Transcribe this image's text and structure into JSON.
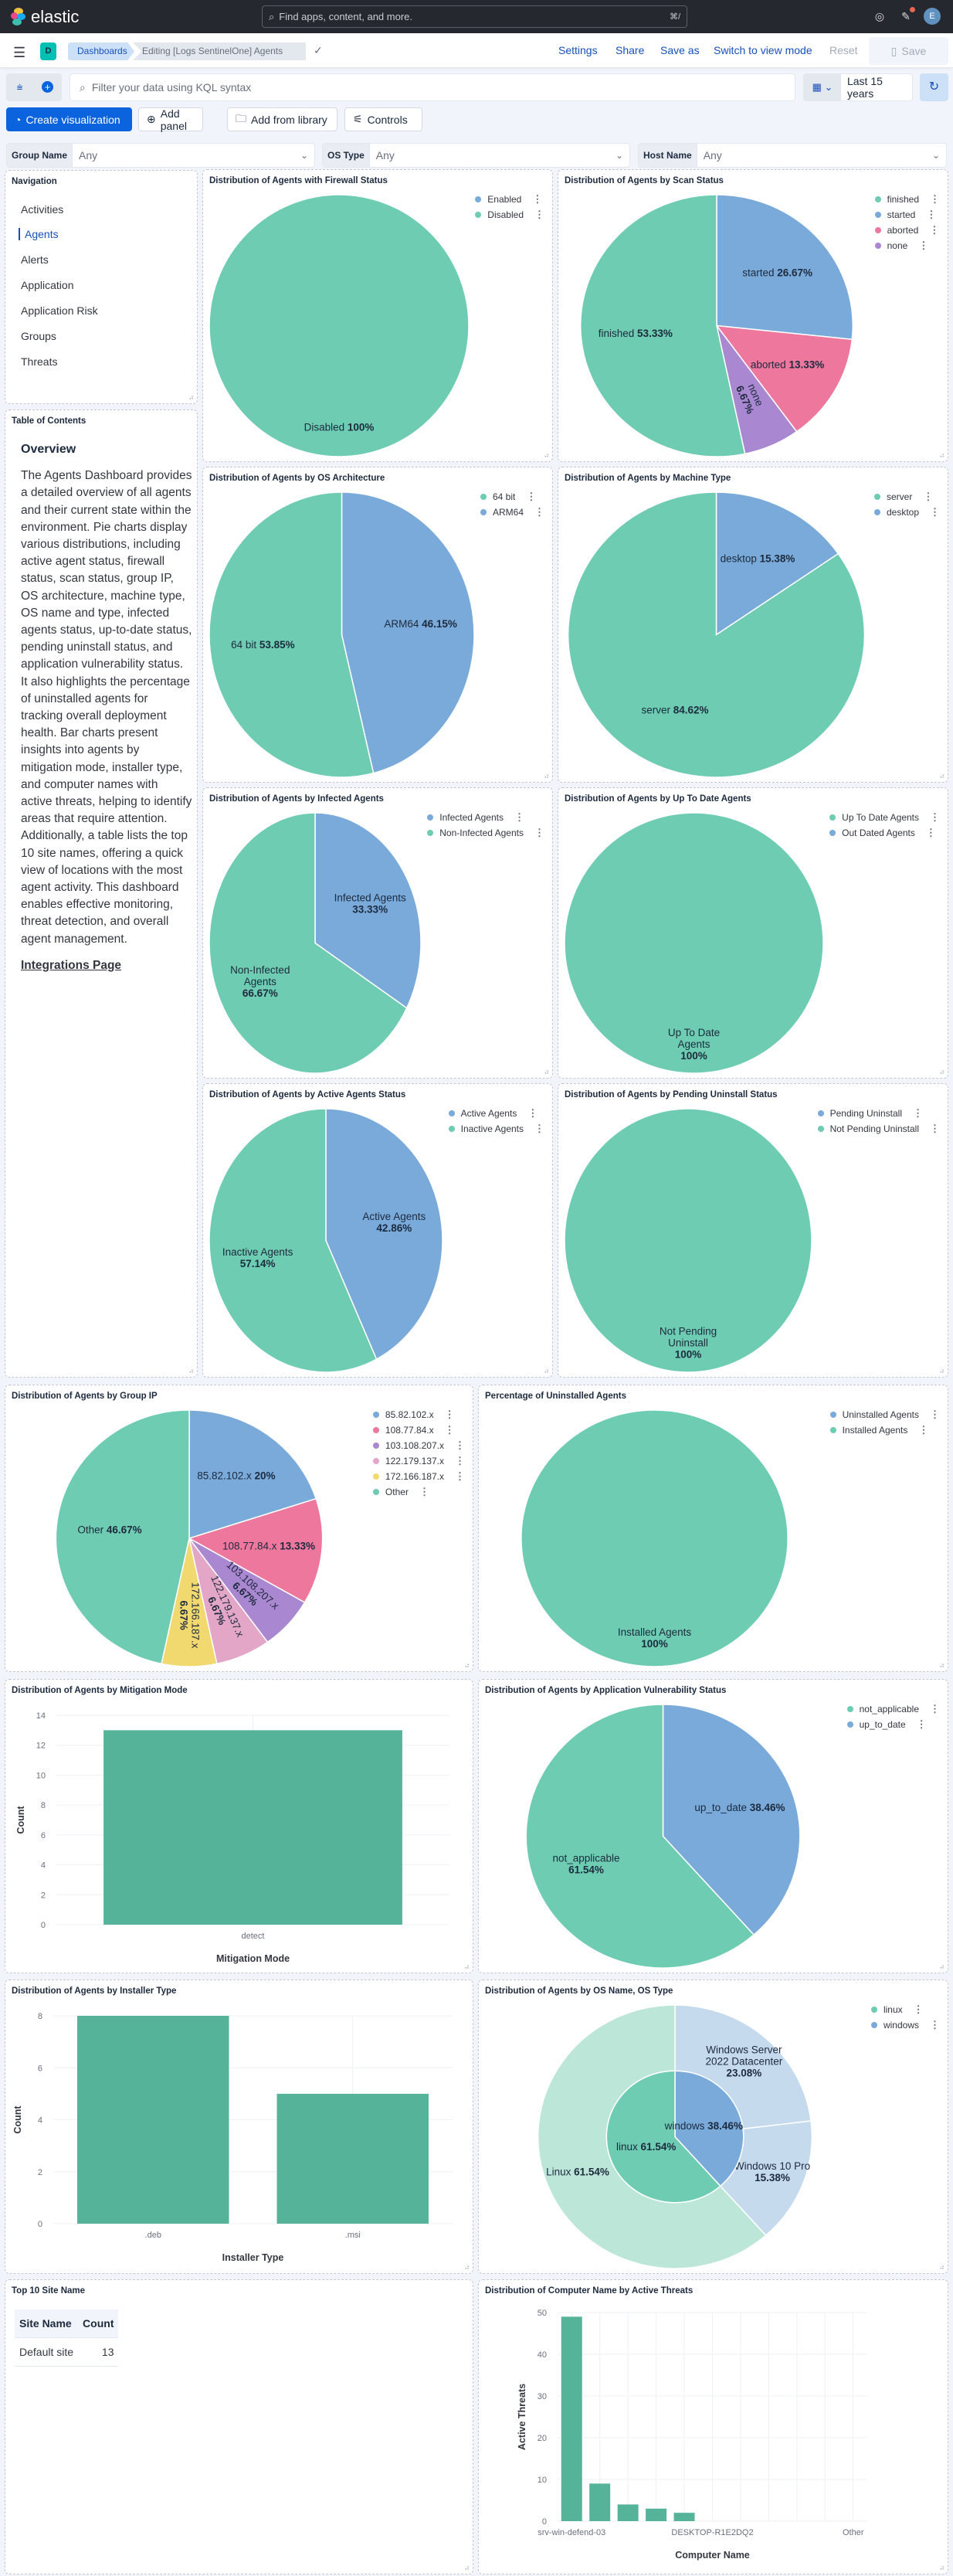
{
  "header": {
    "brand": "elastic",
    "search_placeholder": "Find apps, content, and more.",
    "search_shortcut": "⌘/",
    "avatar_initial": "E"
  },
  "appbar": {
    "space_initial": "D",
    "breadcrumbs": [
      "Dashboards",
      "Editing [Logs SentinelOne] Agents"
    ],
    "actions": {
      "settings": "Settings",
      "share": "Share",
      "save_as": "Save as",
      "switch_view": "Switch to view mode",
      "reset": "Reset",
      "save": "Save"
    }
  },
  "query": {
    "placeholder": "Filter your data using KQL syntax",
    "time_range": "Last 15 years"
  },
  "toolbar": {
    "create_visualization": "Create visualization",
    "add_panel": "Add panel",
    "add_from_library": "Add from library",
    "controls": "Controls"
  },
  "controls": [
    {
      "label": "Group Name",
      "value": "Any"
    },
    {
      "label": "OS Type",
      "value": "Any"
    },
    {
      "label": "Host Name",
      "value": "Any"
    }
  ],
  "navigation": {
    "title": "Navigation",
    "items": [
      "Activities",
      "Agents",
      "Alerts",
      "Application",
      "Application Risk",
      "Groups",
      "Threats"
    ],
    "active": "Agents"
  },
  "toc": {
    "title": "Table of Contents",
    "heading": "Overview",
    "body": "The Agents Dashboard provides a detailed overview of all agents and their current state within the environment. Pie charts display various distributions, including active agent status, firewall status, scan status, group IP, OS architecture, machine type, OS name and type, infected agents status, up-to-date status, pending uninstall status, and application vulnerability status. It also highlights the percentage of uninstalled agents for tracking overall deployment health. Bar charts present insights into agents by mitigation mode, installer type, and computer names with active threats, helping to identify areas that require attention. Additionally, a table lists the top 10 site names, offering a quick view of locations with the most agent activity. This dashboard enables effective monitoring, threat detection, and overall agent management.",
    "link": "Integrations Page"
  },
  "colors": {
    "green": "#6DCCB1",
    "blue": "#79AAD9",
    "pink": "#EE789D",
    "purple": "#A987D1",
    "light_pink": "#E4A6C7",
    "yellow": "#F1D86F",
    "bar": "#54B399",
    "accent": "#0B64DD"
  },
  "site_table": {
    "title": "Top 10 Site Name",
    "columns": [
      "Site Name",
      "Count"
    ],
    "rows": [
      [
        "Default site",
        "13"
      ]
    ]
  },
  "chart_data": [
    {
      "type": "pie",
      "title": "Distribution of Agents with Firewall Status",
      "legend": [
        {
          "label": "Enabled",
          "color": "#79AAD9"
        },
        {
          "label": "Disabled",
          "color": "#6DCCB1"
        }
      ],
      "slices": [
        {
          "label": "Disabled",
          "value": 100,
          "pct": "100%",
          "color": "#6DCCB1"
        }
      ]
    },
    {
      "type": "pie",
      "title": "Distribution of Agents by Scan Status",
      "legend": [
        {
          "label": "finished",
          "color": "#6DCCB1"
        },
        {
          "label": "started",
          "color": "#79AAD9"
        },
        {
          "label": "aborted",
          "color": "#EE789D"
        },
        {
          "label": "none",
          "color": "#A987D1"
        }
      ],
      "slices": [
        {
          "label": "started",
          "value": 26.67,
          "pct": "26.67%",
          "color": "#79AAD9"
        },
        {
          "label": "aborted",
          "value": 13.33,
          "pct": "13.33%",
          "color": "#EE789D"
        },
        {
          "label": "none",
          "value": 6.67,
          "pct": "6.67%",
          "color": "#A987D1"
        },
        {
          "label": "finished",
          "value": 53.33,
          "pct": "53.33%",
          "color": "#6DCCB1"
        }
      ]
    },
    {
      "type": "pie",
      "title": "Distribution of Agents by OS Architecture",
      "legend": [
        {
          "label": "64 bit",
          "color": "#6DCCB1"
        },
        {
          "label": "ARM64",
          "color": "#79AAD9"
        }
      ],
      "slices": [
        {
          "label": "ARM64",
          "value": 46.15,
          "pct": "46.15%",
          "color": "#79AAD9"
        },
        {
          "label": "64 bit",
          "value": 53.85,
          "pct": "53.85%",
          "color": "#6DCCB1"
        }
      ]
    },
    {
      "type": "pie",
      "title": "Distribution of Agents by Machine Type",
      "legend": [
        {
          "label": "server",
          "color": "#6DCCB1"
        },
        {
          "label": "desktop",
          "color": "#79AAD9"
        }
      ],
      "slices": [
        {
          "label": "desktop",
          "value": 15.38,
          "pct": "15.38%",
          "color": "#79AAD9"
        },
        {
          "label": "server",
          "value": 84.62,
          "pct": "84.62%",
          "color": "#6DCCB1"
        }
      ]
    },
    {
      "type": "pie",
      "title": "Distribution of Agents by Infected Agents",
      "legend": [
        {
          "label": "Infected Agents",
          "color": "#79AAD9"
        },
        {
          "label": "Non-Infected Agents",
          "color": "#6DCCB1"
        }
      ],
      "slices": [
        {
          "label": "Infected Agents",
          "value": 33.33,
          "pct": "33.33%",
          "color": "#79AAD9"
        },
        {
          "label": "Non-Infected Agents",
          "value": 66.67,
          "pct": "66.67%",
          "color": "#6DCCB1"
        }
      ]
    },
    {
      "type": "pie",
      "title": "Distribution of Agents by Up To Date Agents",
      "legend": [
        {
          "label": "Up To Date Agents",
          "color": "#6DCCB1"
        },
        {
          "label": "Out Dated Agents",
          "color": "#79AAD9"
        }
      ],
      "slices": [
        {
          "label": "Up To Date Agents",
          "value": 100,
          "pct": "100%",
          "color": "#6DCCB1"
        }
      ]
    },
    {
      "type": "pie",
      "title": "Distribution of Agents by Active Agents Status",
      "legend": [
        {
          "label": "Active Agents",
          "color": "#79AAD9"
        },
        {
          "label": "Inactive Agents",
          "color": "#6DCCB1"
        }
      ],
      "slices": [
        {
          "label": "Active Agents",
          "value": 42.86,
          "pct": "42.86%",
          "color": "#79AAD9"
        },
        {
          "label": "Inactive Agents",
          "value": 57.14,
          "pct": "57.14%",
          "color": "#6DCCB1"
        }
      ]
    },
    {
      "type": "pie",
      "title": "Distribution of Agents by Pending Uninstall Status",
      "legend": [
        {
          "label": "Pending Uninstall",
          "color": "#79AAD9"
        },
        {
          "label": "Not Pending Uninstall",
          "color": "#6DCCB1"
        }
      ],
      "slices": [
        {
          "label": "Not Pending Uninstall",
          "value": 100,
          "pct": "100%",
          "color": "#6DCCB1"
        }
      ]
    },
    {
      "type": "pie",
      "title": "Distribution of Agents by Group IP",
      "legend": [
        {
          "label": "85.82.102.x",
          "color": "#79AAD9"
        },
        {
          "label": "108.77.84.x",
          "color": "#EE789D"
        },
        {
          "label": "103.108.207.x",
          "color": "#A987D1"
        },
        {
          "label": "122.179.137.x",
          "color": "#E4A6C7"
        },
        {
          "label": "172.166.187.x",
          "color": "#F1D86F"
        },
        {
          "label": "Other",
          "color": "#6DCCB1"
        }
      ],
      "slices": [
        {
          "label": "85.82.102.x",
          "value": 20,
          "pct": "20%",
          "color": "#79AAD9"
        },
        {
          "label": "108.77.84.x",
          "value": 13.33,
          "pct": "13.33%",
          "color": "#EE789D"
        },
        {
          "label": "103.108.207.x",
          "value": 6.67,
          "pct": "6.67%",
          "color": "#A987D1"
        },
        {
          "label": "122.179.137.x",
          "value": 6.67,
          "pct": "6.67%",
          "color": "#E4A6C7"
        },
        {
          "label": "172.166.187.x",
          "value": 6.67,
          "pct": "6.67%",
          "color": "#F1D86F"
        },
        {
          "label": "Other",
          "value": 46.67,
          "pct": "46.67%",
          "color": "#6DCCB1"
        }
      ]
    },
    {
      "type": "pie",
      "title": "Percentage of Uninstalled Agents",
      "legend": [
        {
          "label": "Uninstalled Agents",
          "color": "#79AAD9"
        },
        {
          "label": "Installed Agents",
          "color": "#6DCCB1"
        }
      ],
      "slices": [
        {
          "label": "Installed Agents",
          "value": 100,
          "pct": "100%",
          "color": "#6DCCB1"
        }
      ]
    },
    {
      "type": "bar",
      "title": "Distribution of Agents by Mitigation Mode",
      "categories": [
        "detect"
      ],
      "values": [
        13
      ],
      "xlabel": "Mitigation Mode",
      "ylabel": "Count",
      "ylim": [
        0,
        14
      ],
      "yticks": [
        0,
        2,
        4,
        6,
        8,
        10,
        12,
        14
      ],
      "grid": true
    },
    {
      "type": "pie",
      "title": "Distribution of Agents by Application Vulnerability Status",
      "legend": [
        {
          "label": "not_applicable",
          "color": "#6DCCB1"
        },
        {
          "label": "up_to_date",
          "color": "#79AAD9"
        }
      ],
      "slices": [
        {
          "label": "up_to_date",
          "value": 38.46,
          "pct": "38.46%",
          "color": "#79AAD9"
        },
        {
          "label": "not_applicable",
          "value": 61.54,
          "pct": "61.54%",
          "color": "#6DCCB1"
        }
      ]
    },
    {
      "type": "bar",
      "title": "Distribution of Agents by Installer Type",
      "categories": [
        ".deb",
        ".msi"
      ],
      "values": [
        8,
        5
      ],
      "xlabel": "Installer Type",
      "ylabel": "Count",
      "ylim": [
        0,
        8
      ],
      "yticks": [
        0,
        2,
        4,
        6,
        8
      ],
      "grid": true
    },
    {
      "type": "donut",
      "title": "Distribution of Agents by OS Name, OS Type",
      "legend": [
        {
          "label": "linux",
          "color": "#6DCCB1"
        },
        {
          "label": "windows",
          "color": "#79AAD9"
        }
      ],
      "inner": [
        {
          "label": "windows",
          "value": 38.46,
          "pct": "38.46%",
          "color": "#79AAD9"
        },
        {
          "label": "linux",
          "value": 61.54,
          "pct": "61.54%",
          "color": "#6DCCB1"
        }
      ],
      "outer": [
        {
          "label": "Windows Server 2022 Datacenter",
          "value": 23.08,
          "pct": "23.08%",
          "color": "#C6DAEE"
        },
        {
          "label": "Windows 10 Pro",
          "value": 15.38,
          "pct": "15.38%",
          "color": "#C6DAEE"
        },
        {
          "label": "Linux",
          "value": 61.54,
          "pct": "61.54%",
          "color": "#BCE6D8"
        }
      ]
    },
    {
      "type": "bar",
      "title": "Distribution of Computer Name by Active Threats",
      "categories": [
        "srv-win-defend-03",
        "",
        "",
        "",
        "",
        "DESKTOP-R1E2DQ2",
        "",
        "",
        "",
        "",
        "Other"
      ],
      "values": [
        49,
        9,
        4,
        3,
        2,
        0,
        0,
        0,
        0,
        0,
        0
      ],
      "xlabel": "Computer Name",
      "ylabel": "Active Threats",
      "ylim": [
        0,
        50
      ],
      "yticks": [
        0,
        10,
        20,
        30,
        40,
        50
      ],
      "grid": true
    }
  ]
}
